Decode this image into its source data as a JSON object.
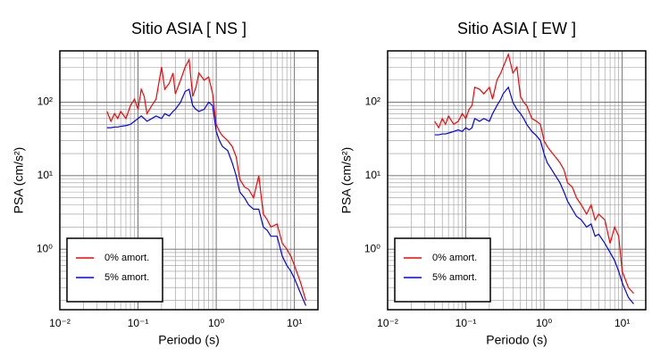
{
  "chart_data": [
    {
      "type": "line",
      "title": "Sitio ASIA [ NS ]",
      "x_label": "Periodo (s)",
      "y_label": "PSA (cm/s²)",
      "x": [
        0.04,
        0.045,
        0.05,
        0.055,
        0.06,
        0.07,
        0.08,
        0.09,
        0.1,
        0.11,
        0.12,
        0.13,
        0.15,
        0.17,
        0.2,
        0.22,
        0.25,
        0.28,
        0.3,
        0.35,
        0.4,
        0.45,
        0.5,
        0.55,
        0.6,
        0.7,
        0.8,
        0.9,
        1.0,
        1.1,
        1.2,
        1.4,
        1.6,
        1.8,
        2.0,
        2.3,
        2.6,
        3.0,
        3.5,
        4.0,
        4.5,
        5.0,
        6.0,
        7.0,
        8.0,
        9.0,
        10,
        12,
        14
      ],
      "series": [
        {
          "name": "0% amort.",
          "color": "#ff0000",
          "values": [
            75,
            55,
            70,
            60,
            75,
            60,
            90,
            110,
            80,
            150,
            120,
            70,
            90,
            110,
            300,
            150,
            180,
            250,
            130,
            200,
            300,
            380,
            120,
            160,
            250,
            200,
            220,
            130,
            50,
            40,
            35,
            30,
            25,
            18,
            9,
            7,
            6.5,
            5,
            10,
            3,
            2.5,
            2,
            2.2,
            1.2,
            1.0,
            0.8,
            0.6,
            0.35,
            0.2
          ]
        },
        {
          "name": "5% amort.",
          "color": "#0000ff",
          "values": [
            45,
            45,
            46,
            46,
            47,
            48,
            50,
            55,
            60,
            65,
            60,
            55,
            60,
            65,
            60,
            70,
            65,
            75,
            80,
            100,
            140,
            150,
            90,
            80,
            75,
            80,
            100,
            90,
            40,
            30,
            25,
            22,
            15,
            10,
            6,
            5,
            4,
            3.5,
            3.5,
            2.0,
            1.8,
            1.5,
            1.5,
            0.8,
            0.6,
            0.5,
            0.4,
            0.25,
            0.17
          ]
        }
      ],
      "xscale": "log",
      "yscale": "log",
      "xlim": [
        0.01,
        20
      ],
      "ylim": [
        0.15,
        500
      ],
      "xticks": [
        {
          "value": 0.01,
          "label": "10⁻²"
        },
        {
          "value": 0.1,
          "label": "10⁻¹"
        },
        {
          "value": 1,
          "label": "10⁰"
        },
        {
          "value": 10,
          "label": "10¹"
        }
      ],
      "yticks": [
        {
          "value": 1,
          "label": "10⁰"
        },
        {
          "value": 10,
          "label": "10¹"
        },
        {
          "value": 100,
          "label": "10²"
        }
      ],
      "grid": true,
      "minor_grid": true,
      "legend": "lower left"
    },
    {
      "type": "line",
      "title": "Sitio ASIA [ EW ]",
      "x_label": "Periodo (s)",
      "y_label": "PSA (cm/s²)",
      "x": [
        0.04,
        0.045,
        0.05,
        0.055,
        0.06,
        0.07,
        0.08,
        0.09,
        0.1,
        0.11,
        0.12,
        0.13,
        0.15,
        0.17,
        0.2,
        0.22,
        0.25,
        0.28,
        0.3,
        0.35,
        0.4,
        0.45,
        0.5,
        0.55,
        0.6,
        0.7,
        0.8,
        0.9,
        1.0,
        1.1,
        1.2,
        1.4,
        1.6,
        1.8,
        2.0,
        2.3,
        2.6,
        3.0,
        3.5,
        4.0,
        4.5,
        5.0,
        6.0,
        7.0,
        8.0,
        9.0,
        10,
        12,
        14
      ],
      "series": [
        {
          "name": "0% amort.",
          "color": "#ff0000",
          "values": [
            55,
            45,
            60,
            50,
            65,
            50,
            55,
            70,
            60,
            80,
            90,
            160,
            150,
            130,
            160,
            110,
            200,
            250,
            300,
            450,
            250,
            300,
            120,
            100,
            90,
            60,
            55,
            50,
            30,
            25,
            22,
            18,
            15,
            12,
            8,
            7,
            5,
            4,
            3,
            4,
            2.5,
            3,
            2.5,
            1.2,
            2.0,
            1.5,
            0.5,
            0.3,
            0.25
          ]
        },
        {
          "name": "5% amort.",
          "color": "#0000ff",
          "values": [
            36,
            36,
            37,
            37,
            38,
            40,
            42,
            40,
            45,
            42,
            45,
            60,
            55,
            60,
            55,
            70,
            90,
            110,
            130,
            160,
            100,
            80,
            70,
            60,
            50,
            40,
            35,
            30,
            20,
            15,
            13,
            10,
            8,
            6,
            4.5,
            3.5,
            2.8,
            2.5,
            2.0,
            2.2,
            1.5,
            1.6,
            1.2,
            0.9,
            0.7,
            0.5,
            0.35,
            0.22,
            0.18
          ]
        }
      ],
      "xscale": "log",
      "yscale": "log",
      "xlim": [
        0.01,
        20
      ],
      "ylim": [
        0.15,
        500
      ],
      "xticks": [
        {
          "value": 0.01,
          "label": "10⁻²"
        },
        {
          "value": 0.1,
          "label": "10⁻¹"
        },
        {
          "value": 1,
          "label": "10⁰"
        },
        {
          "value": 10,
          "label": "10¹"
        }
      ],
      "yticks": [
        {
          "value": 1,
          "label": "10⁰"
        },
        {
          "value": 10,
          "label": "10¹"
        },
        {
          "value": 100,
          "label": "10²"
        }
      ],
      "grid": true,
      "minor_grid": true,
      "legend": "lower left"
    }
  ]
}
